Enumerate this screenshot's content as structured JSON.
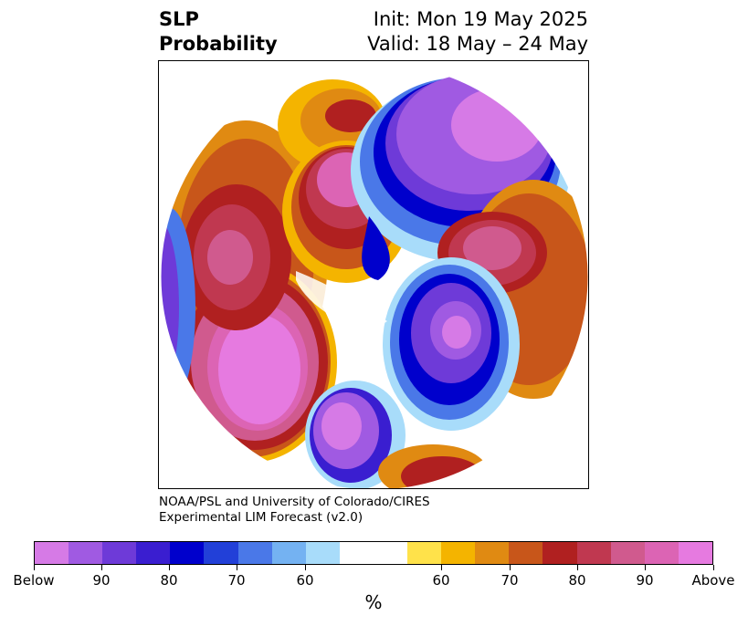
{
  "title": {
    "left_line1": "SLP",
    "left_line2": "Probability",
    "right_line1": "Init: Mon 19 May 2025",
    "right_line2": "Valid: 18 May – 24 May"
  },
  "credit": {
    "line1": "NOAA/PSL and University of Colorado/CIRES",
    "line2": "Experimental LIM Forecast (v2.0)"
  },
  "colorbar": {
    "unit": "%",
    "colors": [
      "#d67ae6",
      "#a05ae2",
      "#6e3ad8",
      "#3a1ed0",
      "#0000cc",
      "#2240d8",
      "#4a78e8",
      "#74b2f2",
      "#a8dcfa",
      "#ffffff",
      "#ffffff",
      "#ffe24a",
      "#f4b400",
      "#e08a12",
      "#c8561a",
      "#b02020",
      "#c03850",
      "#d05a8e",
      "#dc64b4",
      "#e67ae0"
    ],
    "ticks": [
      {
        "label": "Below"
      },
      {
        "label": "90"
      },
      {
        "label": "80"
      },
      {
        "label": "70"
      },
      {
        "label": "60"
      },
      {
        "label": "60"
      },
      {
        "label": "70"
      },
      {
        "label": "80"
      },
      {
        "label": "90"
      },
      {
        "label": "Above"
      }
    ]
  }
}
